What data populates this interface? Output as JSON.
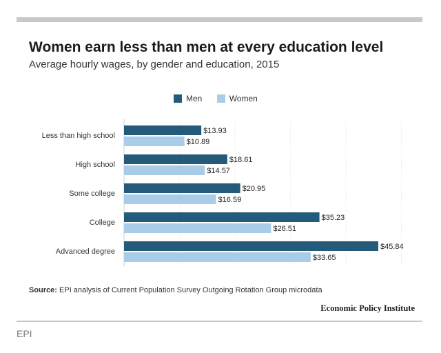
{
  "title": "Women earn less than men at every education level",
  "subtitle": "Average hourly wages, by gender and education, 2015",
  "legend": {
    "men": "Men",
    "women": "Women"
  },
  "colors": {
    "men": "#245a7a",
    "women": "#a9cde8",
    "axis": "#cccccc"
  },
  "source": {
    "label": "Source:",
    "text": " EPI analysis of Current Population Survey Outgoing Rotation Group microdata"
  },
  "brand": "Economic Policy Institute",
  "credit": "EPI",
  "chart_data": {
    "type": "bar",
    "orientation": "horizontal",
    "title": "Women earn less than men at every education level",
    "subtitle": "Average hourly wages, by gender and education, 2015",
    "categories": [
      "Less than high school",
      "High school",
      "Some college",
      "College",
      "Advanced degree"
    ],
    "series": [
      {
        "name": "Men",
        "values": [
          13.93,
          18.61,
          20.95,
          35.23,
          45.84
        ],
        "labels": [
          "$13.93",
          "$18.61",
          "$20.95",
          "$35.23",
          "$45.84"
        ]
      },
      {
        "name": "Women",
        "values": [
          10.89,
          14.57,
          16.59,
          26.51,
          33.65
        ],
        "labels": [
          "$10.89",
          "$14.57",
          "$16.59",
          "$26.51",
          "$33.65"
        ]
      }
    ],
    "xlim": [
      0,
      50
    ],
    "grid": true,
    "legend_position": "top-center"
  }
}
